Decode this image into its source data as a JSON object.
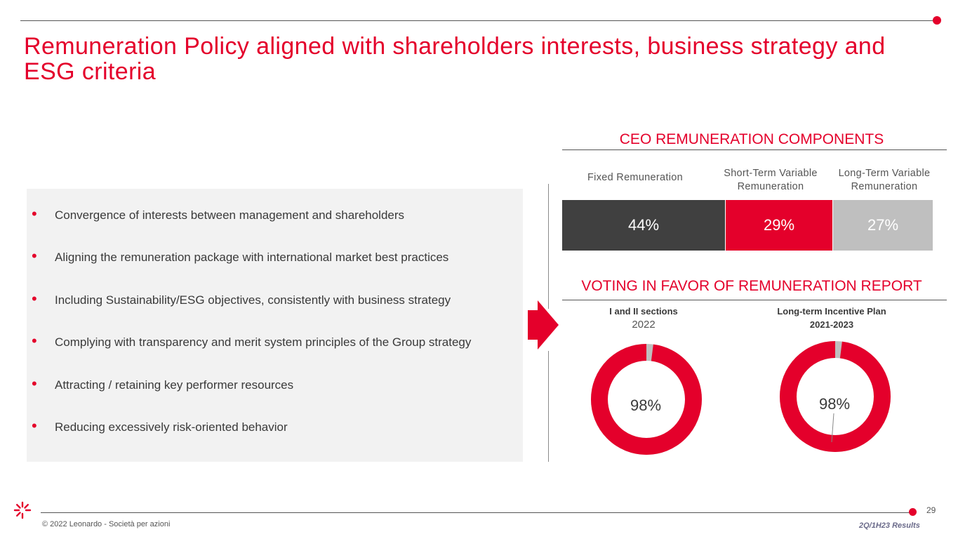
{
  "title": "Remuneration Policy aligned with shareholders interests, business strategy and ESG criteria",
  "bullets": [
    "Convergence of interests between management and shareholders",
    "Aligning the remuneration package with international market best practices",
    "Including Sustainability/ESG objectives, consistently with business strategy",
    "Complying with transparency and merit system principles of the Group strategy",
    "Attracting / retaining key performer resources",
    "Reducing excessively risk-oriented behavior"
  ],
  "colors": {
    "accent": "#e4002b",
    "dark": "#404040",
    "light_gray": "#bfbfbf"
  },
  "ceo": {
    "title": "CEO REMUNERATION COMPONENTS",
    "columns": [
      {
        "label": "Fixed Remuneration",
        "value_label": "44%",
        "color": "#404040"
      },
      {
        "label": "Short-Term Variable Remuneration",
        "value_label": "29%",
        "color": "#e4002b"
      },
      {
        "label": "Long-Term Variable Remuneration",
        "value_label": "27%",
        "color": "#bfbfbf"
      }
    ]
  },
  "voting": {
    "title": "VOTING IN FAVOR OF REMUNERATION REPORT",
    "donuts": [
      {
        "caption": "I and II sections",
        "subcaption": "2022",
        "value_label": "98%"
      },
      {
        "caption": "Long-term Incentive Plan",
        "subcaption": "2021-2023",
        "value_label": "98%"
      }
    ]
  },
  "chart_data": [
    {
      "type": "bar",
      "title": "CEO REMUNERATION COMPONENTS",
      "categories": [
        "Fixed Remuneration",
        "Short-Term Variable Remuneration",
        "Long-Term Variable Remuneration"
      ],
      "values": [
        44,
        29,
        27
      ]
    },
    {
      "type": "pie",
      "title": "I and II sections 2022",
      "values": [
        98,
        2
      ]
    },
    {
      "type": "pie",
      "title": "Long-term Incentive Plan 2021-2023",
      "values": [
        98,
        2
      ]
    }
  ],
  "footer": {
    "page_number": "29",
    "copyright": "© 2022 Leonardo - Società per azioni",
    "results": "2Q/1H23 Results"
  }
}
